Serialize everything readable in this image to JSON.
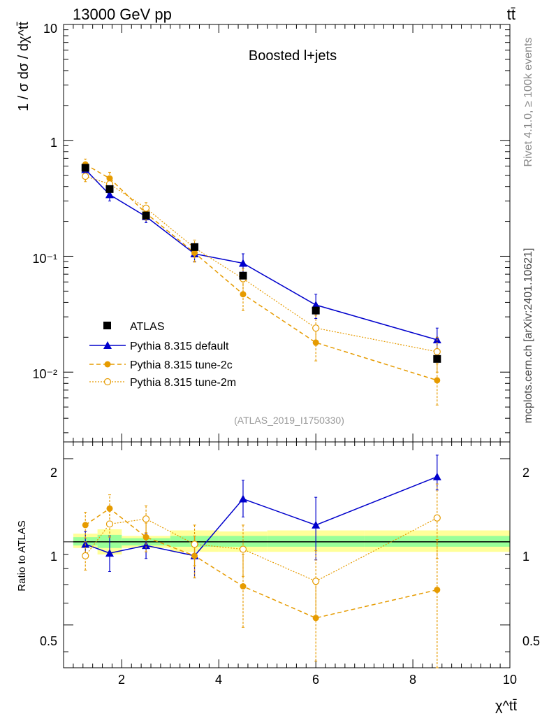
{
  "header": {
    "energy_label": "13000 GeV pp",
    "process_label": "tt̄"
  },
  "side": {
    "rivet_label": "Rivet 4.1.0, ≥ 100k events",
    "source_label": "mcplots.cern.ch [arXiv:2401.10621]"
  },
  "chart_data": [
    {
      "type": "line",
      "panel": "main",
      "title": "Boosted l+jets",
      "watermark": "(ATLAS_2019_I1750330)",
      "xlabel": "χ^tt̄",
      "ylabel": "1 / σ dσ / dχ^tt̄",
      "yscale": "log",
      "xlim": [
        0.8,
        10
      ],
      "ylim": [
        0.0025,
        10
      ],
      "ytick_labels": [
        "10",
        "1",
        "10⁻¹",
        "10⁻²"
      ],
      "legend_position": "left-middle",
      "colors": {
        "atlas": "#000000",
        "default": "#0000cc",
        "tune2c": "#e69b00",
        "tune2m": "#e69b00"
      },
      "data_points": {
        "name": "ATLAS",
        "x": [
          1.25,
          1.75,
          2.5,
          3.5,
          4.5,
          6.0,
          8.5
        ],
        "y": [
          0.58,
          0.38,
          0.225,
          0.12,
          0.068,
          0.034,
          0.013
        ]
      },
      "series": [
        {
          "name": "Pythia 8.315 default",
          "x": [
            1.25,
            1.75,
            2.5,
            3.5,
            4.5,
            6.0,
            8.5
          ],
          "y": [
            0.56,
            0.34,
            0.22,
            0.105,
            0.087,
            0.038,
            0.019
          ],
          "err": [
            0.05,
            0.04,
            0.025,
            0.015,
            0.018,
            0.009,
            0.005
          ]
        },
        {
          "name": "Pythia 8.315 tune-2c",
          "x": [
            1.25,
            1.75,
            2.5,
            3.5,
            4.5,
            6.0,
            8.5
          ],
          "y": [
            0.62,
            0.47,
            0.235,
            0.107,
            0.047,
            0.018,
            0.0085
          ],
          "err": [
            0.07,
            0.06,
            0.03,
            0.018,
            0.013,
            0.0055,
            0.0033
          ]
        },
        {
          "name": "Pythia 8.315 tune-2m",
          "x": [
            1.25,
            1.75,
            2.5,
            3.5,
            4.5,
            6.0,
            8.5
          ],
          "y": [
            0.49,
            0.42,
            0.26,
            0.118,
            0.064,
            0.024,
            0.015
          ],
          "err": [
            0.05,
            0.05,
            0.03,
            0.02,
            0.015,
            0.007,
            0.005
          ]
        }
      ]
    },
    {
      "type": "line",
      "panel": "ratio",
      "ylabel": "Ratio to ATLAS",
      "xlabel": "χ^tt̄",
      "xlim": [
        0.8,
        10
      ],
      "ylim": [
        0.35,
        2.3
      ],
      "xticks": [
        2,
        4,
        6,
        8,
        10
      ],
      "ytick_labels": [
        "0.5",
        "1",
        "2"
      ],
      "bands": [
        {
          "x0": 1.0,
          "x1": 1.5,
          "inner": [
            0.97,
            1.04
          ],
          "outer": [
            0.95,
            1.07
          ]
        },
        {
          "x0": 1.5,
          "x1": 2.0,
          "inner": [
            0.95,
            1.06
          ],
          "outer": [
            0.9,
            1.11
          ]
        },
        {
          "x0": 2.0,
          "x1": 3.0,
          "inner": [
            0.97,
            1.03
          ],
          "outer": [
            0.95,
            1.05
          ]
        },
        {
          "x0": 3.0,
          "x1": 4.0,
          "inner": [
            0.96,
            1.05
          ],
          "outer": [
            0.92,
            1.1
          ]
        },
        {
          "x0": 4.0,
          "x1": 5.0,
          "inner": [
            0.96,
            1.05
          ],
          "outer": [
            0.92,
            1.09
          ]
        },
        {
          "x0": 5.0,
          "x1": 7.0,
          "inner": [
            0.96,
            1.05
          ],
          "outer": [
            0.92,
            1.1
          ]
        },
        {
          "x0": 7.0,
          "x1": 10.0,
          "inner": [
            0.96,
            1.05
          ],
          "outer": [
            0.92,
            1.1
          ]
        }
      ],
      "series": [
        {
          "name": "Pythia 8.315 default",
          "x": [
            1.25,
            1.75,
            2.5,
            3.5,
            4.5,
            6.0,
            8.5
          ],
          "y": [
            0.98,
            0.91,
            0.97,
            0.89,
            1.43,
            1.15,
            1.72
          ],
          "err_lo": [
            0.1,
            0.13,
            0.1,
            0.15,
            0.2,
            0.29,
            0.18
          ],
          "err_hi": [
            0.11,
            0.14,
            0.1,
            0.16,
            0.24,
            0.3,
            0.34
          ]
        },
        {
          "name": "Pythia 8.315 tune-2c",
          "x": [
            1.25,
            1.75,
            2.5,
            3.5,
            4.5,
            6.0,
            8.5
          ],
          "y": [
            1.15,
            1.32,
            1.04,
            0.89,
            0.69,
            0.53,
            0.67
          ],
          "err_lo": [
            0.12,
            0.15,
            0.12,
            0.15,
            0.2,
            0.16,
            0.32
          ],
          "err_hi": [
            0.13,
            0.16,
            0.13,
            0.16,
            0.21,
            0.17,
            0.35
          ]
        },
        {
          "name": "Pythia 8.315 tune-2m",
          "x": [
            1.25,
            1.75,
            2.5,
            3.5,
            4.5,
            6.0,
            8.5
          ],
          "y": [
            0.89,
            1.16,
            1.21,
            0.98,
            0.94,
            0.72,
            1.22
          ],
          "err_lo": [
            0.1,
            0.12,
            0.13,
            0.16,
            0.19,
            0.2,
            0.35
          ],
          "err_hi": [
            0.11,
            0.13,
            0.14,
            0.17,
            0.21,
            0.21,
            0.4
          ]
        }
      ]
    }
  ]
}
